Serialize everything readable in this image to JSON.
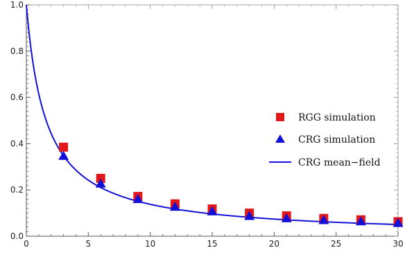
{
  "chart_data": {
    "type": "scatter",
    "xlim": [
      0,
      30
    ],
    "ylim": [
      0,
      1.0
    ],
    "x_ticks": [
      0,
      5,
      10,
      15,
      20,
      25,
      30
    ],
    "x_tick_labels": [
      "0",
      "5",
      "10",
      "15",
      "20",
      "25",
      "30"
    ],
    "y_ticks": [
      0,
      0.2,
      0.4,
      0.6,
      0.8,
      1.0
    ],
    "y_tick_labels": [
      "0.0",
      "0.2",
      "0.4",
      "0.6",
      "0.8",
      "1.0"
    ],
    "legend_position": "right",
    "series": [
      {
        "name": "RGG simulation",
        "marker": "square",
        "color": "#e0181c",
        "x": [
          3,
          6,
          9,
          12,
          15,
          18,
          21,
          24,
          27,
          30
        ],
        "y": [
          0.385,
          0.25,
          0.172,
          0.14,
          0.118,
          0.1,
          0.088,
          0.077,
          0.071,
          0.063
        ]
      },
      {
        "name": "CRG simulation",
        "marker": "triangle",
        "color": "#1010d8",
        "x": [
          3,
          6,
          9,
          12,
          15,
          18,
          21,
          24,
          27,
          30
        ],
        "y": [
          0.345,
          0.225,
          0.158,
          0.125,
          0.105,
          0.085,
          0.075,
          0.067,
          0.062,
          0.055
        ]
      },
      {
        "name": "CRG mean−field",
        "marker": "line",
        "color": "#1010d8",
        "formula": "y = 1/(1 + x/1.6)"
      }
    ]
  }
}
